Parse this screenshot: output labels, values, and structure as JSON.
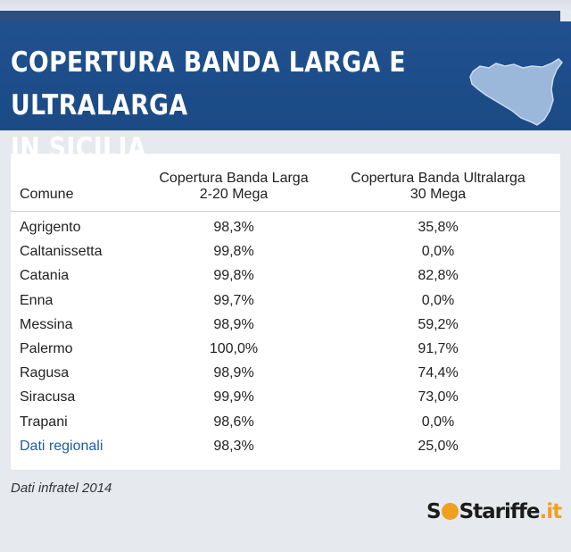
{
  "banner": {
    "title_line1": "COPERTURA BANDA LARGA E ULTRALARGA",
    "title_line2": "IN SICILIA",
    "map_icon": "sicily-map-icon"
  },
  "table": {
    "headers": {
      "comune": "Comune",
      "col1_line1": "Copertura Banda Larga",
      "col1_line2": "2-20 Mega",
      "col2_line1": "Copertura Banda Ultralarga",
      "col2_line2": "30 Mega"
    },
    "rows": [
      {
        "name": "Agrigento",
        "v1": "98,3%",
        "v2": "35,8%"
      },
      {
        "name": "Caltanissetta",
        "v1": "99,8%",
        "v2": "0,0%"
      },
      {
        "name": "Catania",
        "v1": "99,8%",
        "v2": "82,8%"
      },
      {
        "name": "Enna",
        "v1": "99,7%",
        "v2": "0,0%"
      },
      {
        "name": "Messina",
        "v1": "98,9%",
        "v2": "59,2%"
      },
      {
        "name": "Palermo",
        "v1": "100,0%",
        "v2": "91,7%"
      },
      {
        "name": "Ragusa",
        "v1": "98,9%",
        "v2": "74,4%"
      },
      {
        "name": "Siracusa",
        "v1": "99,9%",
        "v2": "73,0%"
      },
      {
        "name": "Trapani",
        "v1": "98,6%",
        "v2": "0,0%"
      },
      {
        "name": "Dati regionali",
        "v1": "98,3%",
        "v2": "25,0%"
      }
    ]
  },
  "source_note": "Dati infratel 2014",
  "logo": {
    "part1": "S",
    "part2": "S",
    "part3": "tariffe",
    "part4": ".it"
  },
  "colors": {
    "banner": "#1b4a85",
    "accent": "#f0a020",
    "link": "#1f5da0"
  }
}
